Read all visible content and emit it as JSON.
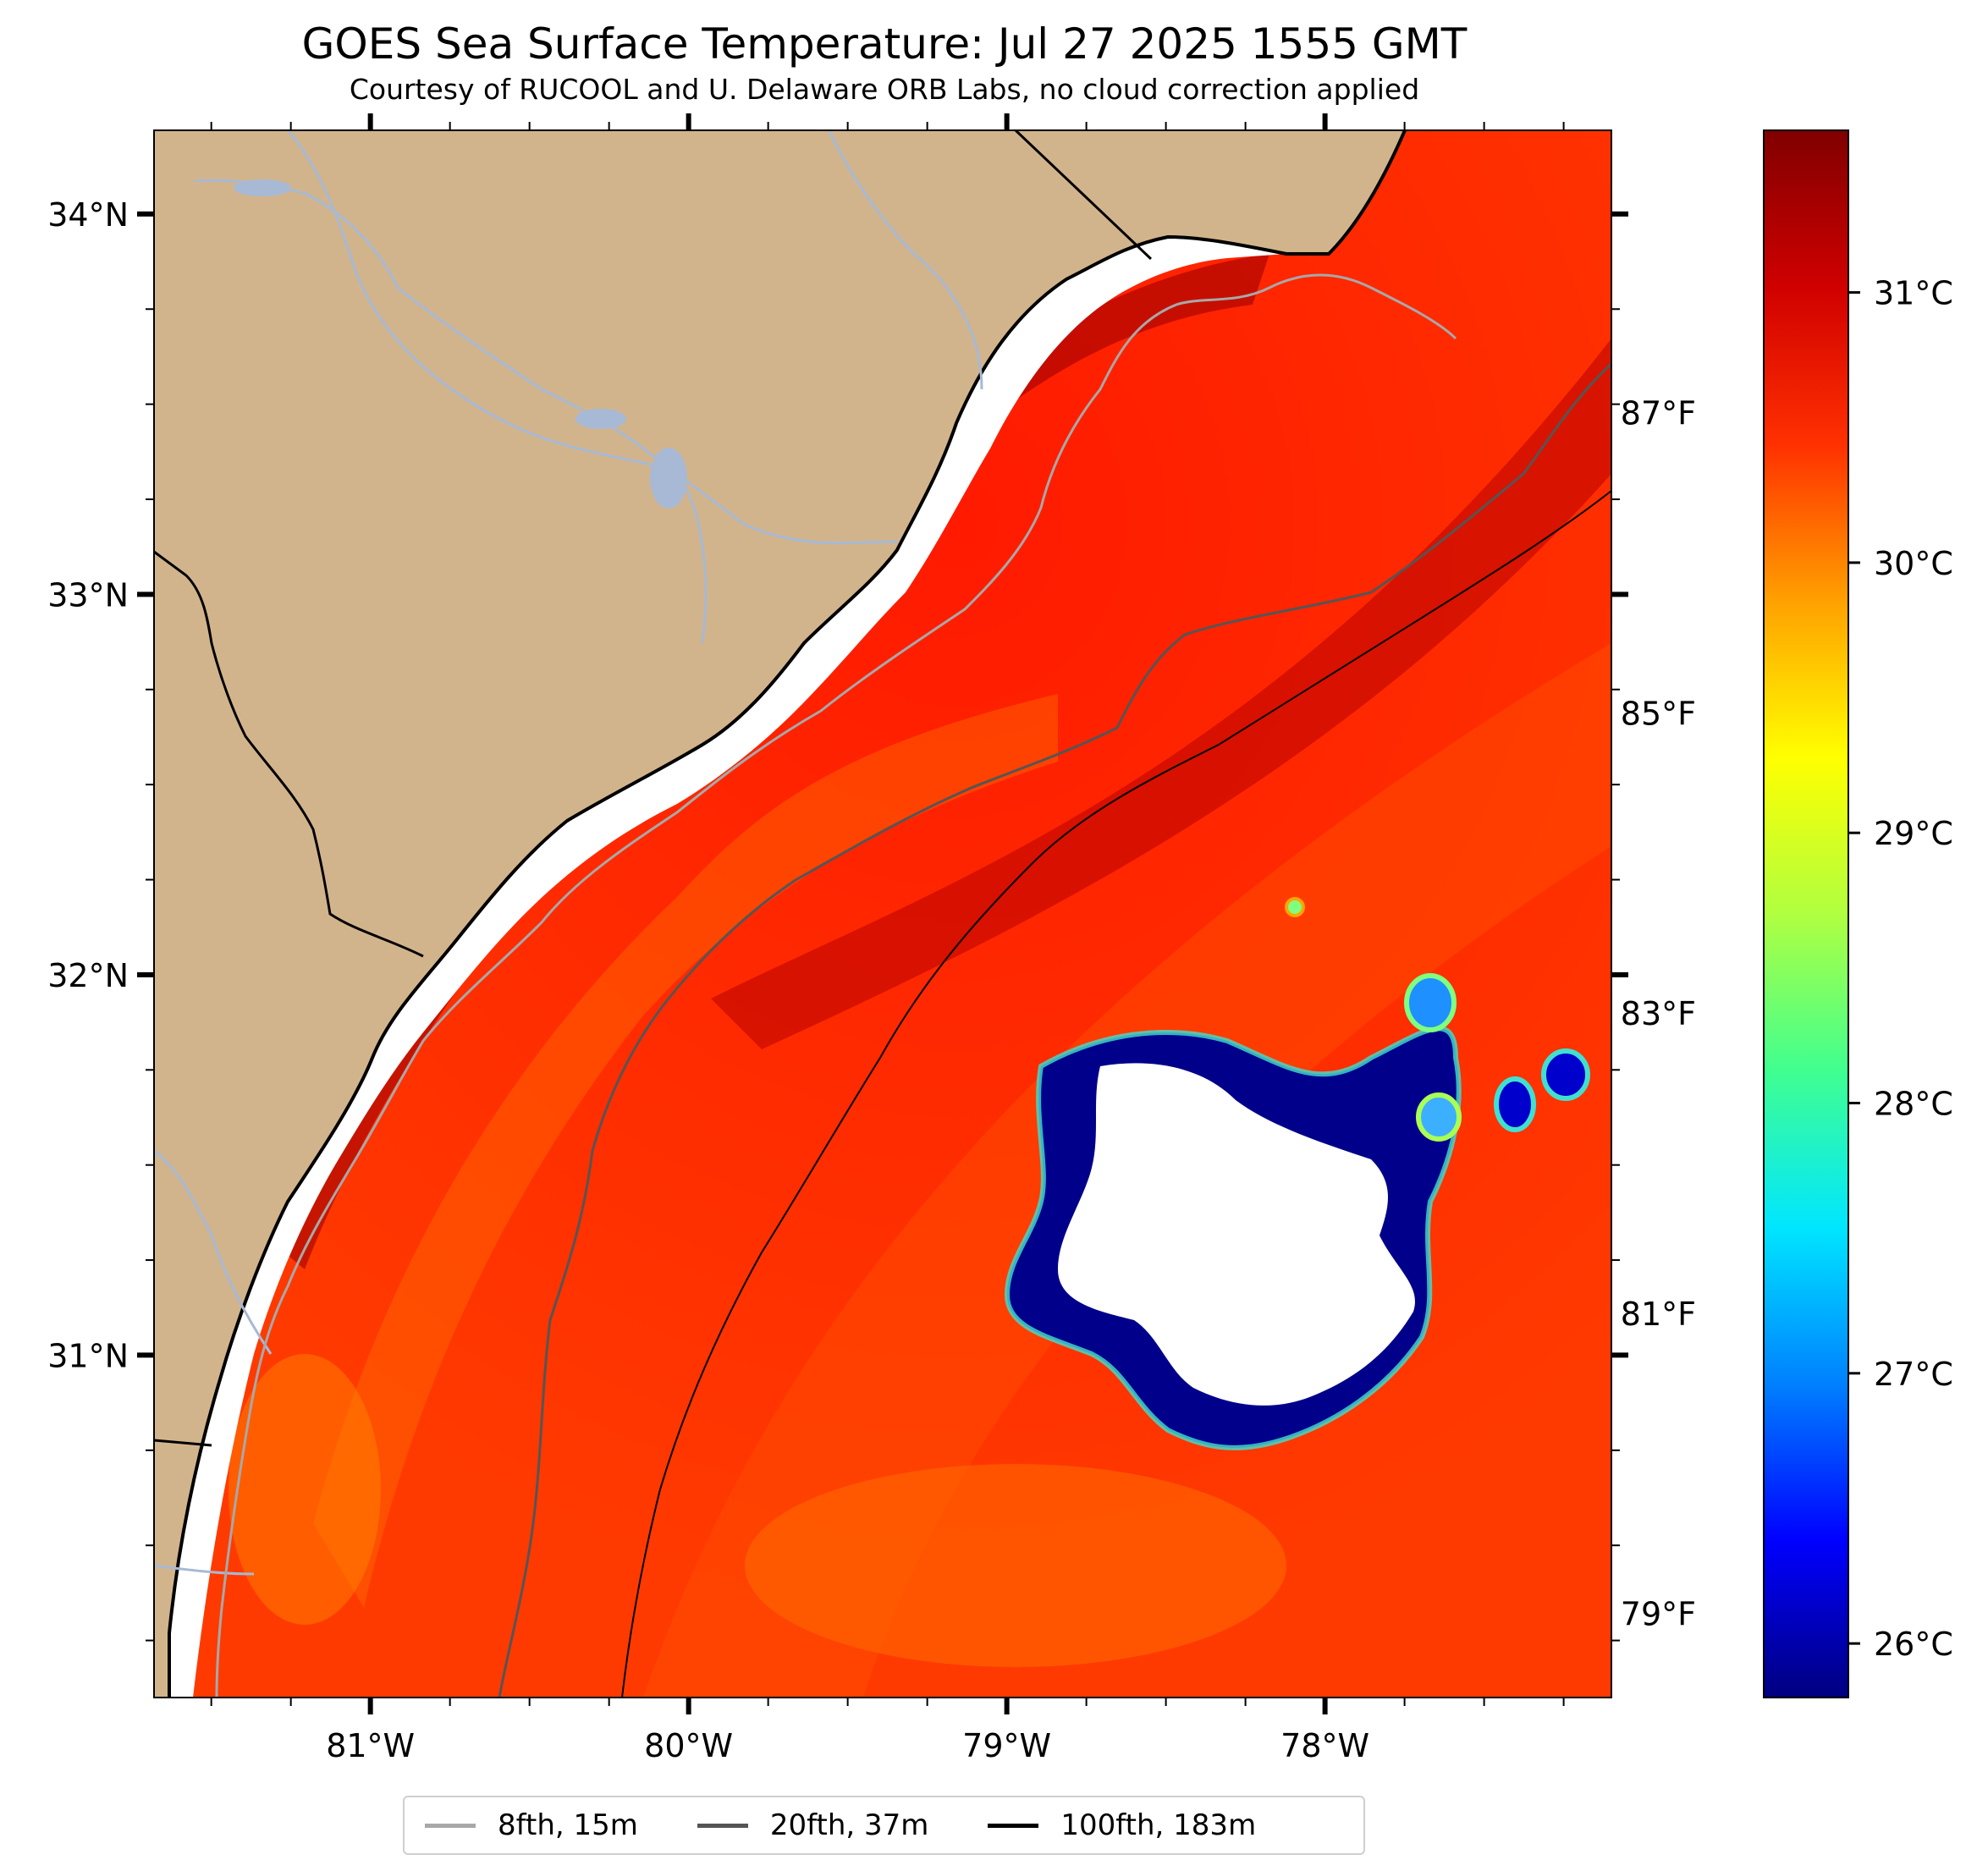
{
  "title": "GOES Sea Surface Temperature: Jul 27 2025 1555 GMT",
  "subtitle": "Courtesy of RUCOOL and U. Delaware ORB Labs, no cloud correction applied",
  "map": {
    "extent": {
      "lon": [
        -81.68,
        -77.1
      ],
      "lat": [
        30.1,
        34.22
      ]
    },
    "longitude_ticks": [
      {
        "value": -81,
        "label": "81°W"
      },
      {
        "value": -80,
        "label": "80°W"
      },
      {
        "value": -79,
        "label": "79°W"
      },
      {
        "value": -78,
        "label": "78°W"
      }
    ],
    "latitude_ticks": [
      {
        "value": 34,
        "label": "34°N"
      },
      {
        "value": 33,
        "label": "33°N"
      },
      {
        "value": 32,
        "label": "32°N"
      },
      {
        "value": 31,
        "label": "31°N"
      }
    ],
    "colors": {
      "land": "#d2b48c",
      "ocean_warm": "#ff2e00",
      "rivers": "#a7b9d4",
      "coastline": "#000000",
      "cloud_mask": "#ffffff"
    }
  },
  "colorbar": {
    "celsius_range": [
      25.8,
      31.6
    ],
    "celsius_ticks": [
      {
        "value": 31,
        "label": "31°C"
      },
      {
        "value": 30,
        "label": "30°C"
      },
      {
        "value": 29,
        "label": "29°C"
      },
      {
        "value": 28,
        "label": "28°C"
      },
      {
        "value": 27,
        "label": "27°C"
      },
      {
        "value": 26,
        "label": "26°C"
      }
    ],
    "fahrenheit_ticks": [
      {
        "value": 87,
        "label": "87°F"
      },
      {
        "value": 85,
        "label": "85°F"
      },
      {
        "value": 83,
        "label": "83°F"
      },
      {
        "value": 81,
        "label": "81°F"
      },
      {
        "value": 79,
        "label": "79°F"
      }
    ],
    "colormap": "jet",
    "colormap_stops": [
      "#000080",
      "#0000ff",
      "#0080ff",
      "#00e6ff",
      "#40ff90",
      "#b0ff40",
      "#ffff00",
      "#ffa000",
      "#ff3000",
      "#d00000",
      "#800000"
    ]
  },
  "legend": {
    "position": "bottom-center",
    "items": [
      {
        "label": "8fth, 15m",
        "color": "#a8a8a8"
      },
      {
        "label": "20fth, 37m",
        "color": "#555555"
      },
      {
        "label": "100fth, 183m",
        "color": "#000000"
      }
    ]
  }
}
